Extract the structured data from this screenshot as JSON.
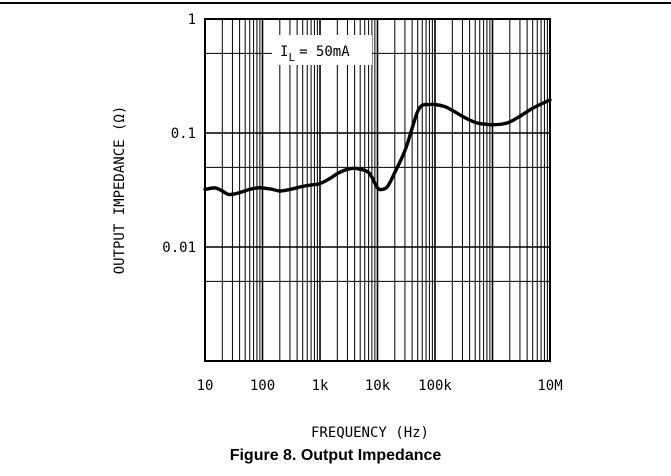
{
  "caption": "Figure 8. Output Impedance",
  "chart_data": {
    "type": "line",
    "title": "",
    "xlabel": "FREQUENCY (Hz)",
    "ylabel": "OUTPUT IMPEDANCE (Ω)",
    "xscale": "log",
    "yscale": "log",
    "xlim": [
      10,
      10000000
    ],
    "ylim": [
      0.001,
      1
    ],
    "x_ticks": [
      "10",
      "100",
      "1k",
      "10k",
      "100k",
      "10M"
    ],
    "y_ticks": [
      "1",
      "0.1",
      "0.01"
    ],
    "grid": true,
    "annotation": {
      "symbol": "I",
      "subscript": "L",
      "text": "= 50mA"
    },
    "series": [
      {
        "x": [
          10,
          15,
          20,
          25,
          30,
          40,
          60,
          80,
          100,
          150,
          200,
          300,
          500,
          700,
          1000,
          1500,
          2000,
          3000,
          4000,
          5000,
          6000,
          7000,
          8000,
          10000,
          12000,
          15000,
          20000,
          30000,
          40000,
          50000,
          60000,
          80000,
          100000,
          150000,
          200000,
          300000,
          400000,
          500000,
          600000,
          700000,
          800000,
          1000000,
          1500000,
          2000000,
          3000000,
          5000000,
          10000000
        ],
        "y": [
          0.032,
          0.033,
          0.031,
          0.029,
          0.029,
          0.03,
          0.032,
          0.033,
          0.033,
          0.032,
          0.031,
          0.032,
          0.034,
          0.035,
          0.036,
          0.04,
          0.044,
          0.048,
          0.049,
          0.048,
          0.047,
          0.045,
          0.041,
          0.033,
          0.032,
          0.034,
          0.045,
          0.07,
          0.11,
          0.155,
          0.175,
          0.178,
          0.178,
          0.17,
          0.158,
          0.14,
          0.13,
          0.124,
          0.121,
          0.12,
          0.119,
          0.118,
          0.12,
          0.125,
          0.14,
          0.165,
          0.195
        ]
      }
    ]
  }
}
